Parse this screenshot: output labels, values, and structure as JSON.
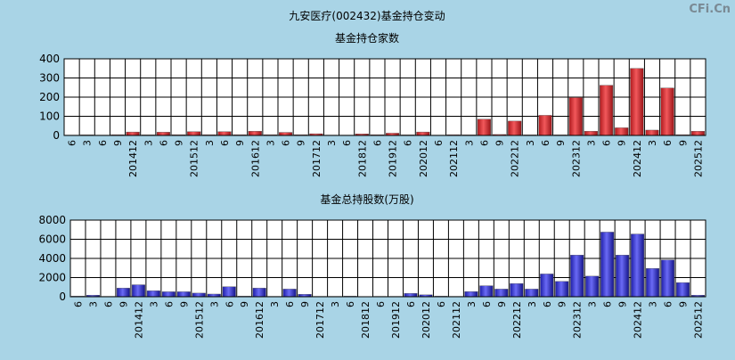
{
  "title": "九安医疗(002432)基金持仓变动",
  "watermark": "CFi.Cn",
  "colors": {
    "background": "#a9d4e6",
    "plot_bg": "#ffffff",
    "grid": "#000000",
    "red_bar": "#e8363a",
    "blue_bar": "#3a3ae0"
  },
  "x_tick_labels": [
    "6",
    "3",
    "6",
    "9",
    "201412",
    "3",
    "6",
    "9",
    "201512",
    "3",
    "6",
    "9",
    "201612",
    "3",
    "6",
    "9",
    "201712",
    "3",
    "6",
    "201812",
    "6",
    "201912",
    "6",
    "202012",
    "6",
    "202112",
    "3",
    "6",
    "9",
    "202212",
    "3",
    "6",
    "9",
    "202312",
    "3",
    "6",
    "9",
    "202412",
    "3",
    "6",
    "9",
    "202512"
  ],
  "chart_data": [
    {
      "type": "bar",
      "title": "基金持仓家数",
      "xlabel": "",
      "ylabel": "",
      "ylim": [
        0,
        400
      ],
      "yticks": [
        0,
        100,
        200,
        300,
        400
      ],
      "grid": true,
      "categories": [
        "6",
        "3",
        "6",
        "9",
        "201412",
        "3",
        "6",
        "9",
        "201512",
        "3",
        "6",
        "9",
        "201612",
        "3",
        "6",
        "9",
        "201712",
        "3",
        "6",
        "201812",
        "6",
        "201912",
        "6",
        "202012",
        "6",
        "202112",
        "3",
        "6",
        "9",
        "202212",
        "3",
        "6",
        "9",
        "202312",
        "3",
        "6",
        "9",
        "202412",
        "3",
        "6",
        "9",
        "202512"
      ],
      "values": [
        2,
        3,
        2,
        4,
        18,
        3,
        17,
        4,
        20,
        4,
        20,
        4,
        22,
        4,
        16,
        4,
        9,
        2,
        2,
        8,
        4,
        12,
        3,
        18,
        2,
        4,
        3,
        85,
        5,
        75,
        3,
        105,
        3,
        198,
        22,
        262,
        40,
        350,
        28,
        248,
        4,
        22
      ]
    },
    {
      "type": "bar",
      "title": "基金总持股数(万股)",
      "xlabel": "",
      "ylabel": "",
      "ylim": [
        0,
        8000
      ],
      "yticks": [
        0,
        2000,
        4000,
        6000,
        8000
      ],
      "grid": true,
      "categories": [
        "6",
        "3",
        "6",
        "9",
        "201412",
        "3",
        "6",
        "9",
        "201512",
        "3",
        "6",
        "9",
        "201612",
        "3",
        "6",
        "9",
        "201712",
        "3",
        "6",
        "201812",
        "6",
        "201912",
        "6",
        "202012",
        "6",
        "202112",
        "3",
        "6",
        "9",
        "202212",
        "3",
        "6",
        "9",
        "202312",
        "3",
        "6",
        "9",
        "202412",
        "3",
        "6",
        "9",
        "202512"
      ],
      "values": [
        60,
        160,
        40,
        900,
        1250,
        620,
        520,
        520,
        380,
        280,
        1050,
        60,
        900,
        40,
        800,
        260,
        40,
        40,
        60,
        20,
        40,
        40,
        350,
        200,
        60,
        40,
        540,
        1150,
        800,
        1380,
        800,
        2380,
        1600,
        4350,
        2150,
        6750,
        4350,
        6550,
        2950,
        3850,
        1480,
        160
      ]
    }
  ]
}
